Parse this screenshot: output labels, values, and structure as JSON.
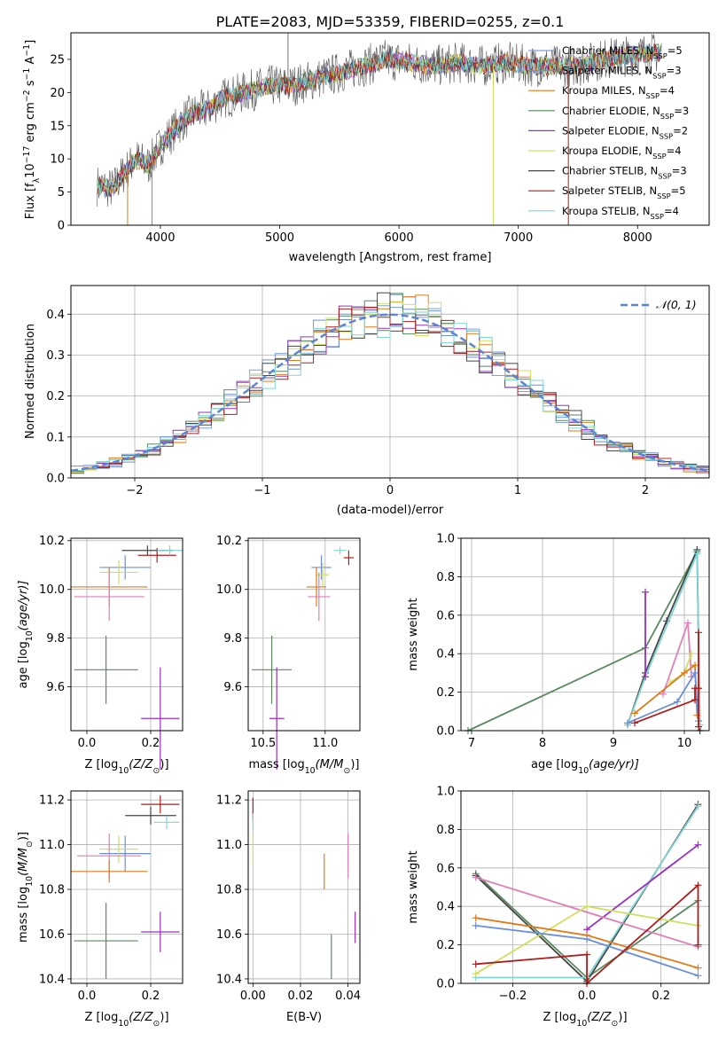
{
  "figure_title": "PLATE=2083, MJD=53359, FIBERID=0255, z=0.1",
  "palette": {
    "Chabrier MILES": "#7f9fd6",
    "Salpeter MILES": "#6a8fdb",
    "Kroupa MILES": "#e07b1a",
    "Chabrier ELODIE": "#5a8a5e",
    "Salpeter ELODIE": "#9b30c0",
    "Kroupa ELODIE": "#cfe060",
    "Chabrier STELIB": "#454545",
    "Salpeter STELIB": "#b01c1c",
    "Kroupa STELIB": "#7fd6d6",
    "extra_pink": "#e07fb8"
  },
  "chart_data": [
    {
      "type": "line",
      "title": "PLATE=2083, MJD=53359, FIBERID=0255, z=0.1",
      "xlabel": "wavelength [Angstrom, rest frame]",
      "ylabel_main": "Flux [f",
      "ylabel_lambda": "λ",
      "ylabel_rest": "10",
      "ylabel_exp1": "−17",
      "ylabel_unit": " erg cm",
      "ylabel_exp2": "−2",
      "ylabel_unit2": " s",
      "ylabel_exp3": "−1",
      "ylabel_unit3": " A",
      "ylabel_exp4": "−1",
      "ylabel_end": "]",
      "xlim": [
        3250,
        8600
      ],
      "ylim": [
        0,
        29
      ],
      "xticks": [
        4000,
        5000,
        6000,
        7000,
        8000
      ],
      "yticks": [
        0,
        5,
        10,
        15,
        20,
        25
      ],
      "continuum_x": [
        3470,
        3600,
        3700,
        3800,
        3900,
        4000,
        4100,
        4200,
        4300,
        4400,
        4500,
        4700,
        4900,
        5100,
        5300,
        5500,
        5700,
        5900,
        6100,
        6300,
        6500,
        6700,
        6900,
        7100,
        7300,
        7500,
        7700,
        7900,
        8100,
        8200
      ],
      "continuum_y": [
        6,
        5.5,
        8,
        10,
        9,
        12,
        14,
        16,
        17,
        17.5,
        19,
        20,
        21,
        21,
        22,
        23,
        24,
        25,
        24.5,
        24,
        24.5,
        24,
        24.5,
        24,
        24,
        24,
        25,
        25.5,
        26,
        26
      ],
      "legend": [
        {
          "label": "Chabrier MILES, N",
          "sub": "SSP",
          "eq": "=5"
        },
        {
          "label": "Salpeter MILES, N",
          "sub": "SSP",
          "eq": "=3"
        },
        {
          "label": "Kroupa MILES, N",
          "sub": "SSP",
          "eq": "=4"
        },
        {
          "label": "Chabrier ELODIE, N",
          "sub": "SSP",
          "eq": "=3"
        },
        {
          "label": "Salpeter ELODIE, N",
          "sub": "SSP",
          "eq": "=2"
        },
        {
          "label": "Kroupa ELODIE, N",
          "sub": "SSP",
          "eq": "=4"
        },
        {
          "label": "Chabrier STELIB, N",
          "sub": "SSP",
          "eq": "=3"
        },
        {
          "label": "Salpeter STELIB, N",
          "sub": "SSP",
          "eq": "=5"
        },
        {
          "label": "Kroupa STELIB, N",
          "sub": "SSP",
          "eq": "=4"
        }
      ]
    },
    {
      "type": "histogram",
      "xlabel": "(data-model)/error",
      "ylabel": "Normed distribution",
      "xlim": [
        -2.5,
        2.5
      ],
      "ylim": [
        0,
        0.47
      ],
      "xticks": [
        -2,
        -1,
        0,
        1,
        2
      ],
      "xtick_labels": [
        "−2",
        "−1",
        "0",
        "1",
        "2"
      ],
      "yticks": [
        0.0,
        0.1,
        0.2,
        0.3,
        0.4
      ],
      "ytick_labels": [
        "0.0",
        "0.1",
        "0.2",
        "0.3",
        "0.4"
      ],
      "bin_width": 0.1,
      "gaussian_label": "𝒩(0, 1)",
      "gaussian_color": "#5b86d6"
    },
    {
      "type": "scatter",
      "xlabel": "Z [log",
      "xlabel_sub": "10",
      "xlabel_rest": "(Z/Z",
      "xlabel_sun_sub": "⊙",
      "xlabel_end": ")]",
      "ylabel": "age  [log",
      "ylabel_sub": "10",
      "ylabel_rest": "(age/yr)]",
      "xlim": [
        -0.05,
        0.3
      ],
      "ylim": [
        9.42,
        10.21
      ],
      "xticks": [
        0.0,
        0.2
      ],
      "xtick_labels": [
        "0.0",
        "0.2"
      ],
      "yticks": [
        9.6,
        9.8,
        10.0,
        10.2
      ],
      "ytick_labels": [
        "9.6",
        "9.8",
        "10.0",
        "10.2"
      ]
    },
    {
      "type": "scatter",
      "xlabel": "mass [log",
      "xlabel_sub": "10",
      "xlabel_rest": "(M/M",
      "xlabel_sun_sub": "⊙",
      "xlabel_end": ")]",
      "xlim": [
        10.38,
        11.28
      ],
      "ylim": [
        9.42,
        10.21
      ],
      "xticks": [
        10.5,
        11.0
      ],
      "xtick_labels": [
        "10.5",
        "11.0"
      ],
      "yticks": [
        9.6,
        9.8,
        10.0,
        10.2
      ],
      "ytick_labels": [
        "9.6",
        "9.8",
        "10.0",
        "10.2"
      ]
    },
    {
      "type": "line",
      "xlabel": "age  [log",
      "xlabel_sub": "10",
      "xlabel_rest": "(age/yr)]",
      "ylabel": "mass weight",
      "xlim": [
        6.85,
        10.35
      ],
      "ylim": [
        0,
        1.0
      ],
      "xticks": [
        7,
        8,
        9,
        10
      ],
      "xtick_labels": [
        "7",
        "8",
        "9",
        "10"
      ],
      "yticks": [
        0.0,
        0.2,
        0.4,
        0.6,
        0.8,
        1.0
      ],
      "ytick_labels": [
        "0.0",
        "0.2",
        "0.4",
        "0.6",
        "0.8",
        "1.0"
      ]
    },
    {
      "type": "scatter",
      "xlabel": "Z [log",
      "xlabel_sub": "10",
      "xlabel_rest": "(Z/Z",
      "xlabel_sun_sub": "⊙",
      "xlabel_end": ")]",
      "ylabel": "mass [log",
      "ylabel_sub": "10",
      "ylabel_rest": "(M/M",
      "ylabel_sun_sub": "⊙",
      "ylabel_end": ")]",
      "xlim": [
        -0.05,
        0.3
      ],
      "ylim": [
        10.38,
        11.24
      ],
      "xticks": [
        0.0,
        0.2
      ],
      "xtick_labels": [
        "0.0",
        "0.2"
      ],
      "yticks": [
        10.4,
        10.6,
        10.8,
        11.0,
        11.2
      ],
      "ytick_labels": [
        "10.4",
        "10.6",
        "10.8",
        "11.0",
        "11.2"
      ]
    },
    {
      "type": "scatter",
      "xlabel": "E(B-V)",
      "xlim": [
        -0.002,
        0.045
      ],
      "ylim": [
        10.38,
        11.24
      ],
      "xticks": [
        0.0,
        0.02,
        0.04
      ],
      "xtick_labels": [
        "0.00",
        "0.02",
        "0.04"
      ],
      "yticks": [
        10.4,
        10.6,
        10.8,
        11.0,
        11.2
      ],
      "ytick_labels": [
        "10.4",
        "10.6",
        "10.8",
        "11.0",
        "11.2"
      ]
    },
    {
      "type": "line",
      "xlabel": "Z [log",
      "xlabel_sub": "10",
      "xlabel_rest": "(Z/Z",
      "xlabel_sun_sub": "⊙",
      "xlabel_end": ")]",
      "ylabel": "mass weight",
      "xlim": [
        -0.34,
        0.33
      ],
      "ylim": [
        0,
        1.0
      ],
      "xticks": [
        -0.2,
        0.0,
        0.2
      ],
      "xtick_labels": [
        "−0.2",
        "0.0",
        "0.2"
      ],
      "yticks": [
        0.0,
        0.2,
        0.4,
        0.6,
        0.8,
        1.0
      ],
      "ytick_labels": [
        "0.0",
        "0.2",
        "0.4",
        "0.6",
        "0.8",
        "1.0"
      ]
    }
  ],
  "scatter_points": {
    "age_Z": [
      {
        "c": "#b01c1c",
        "x": 0.22,
        "y": 10.14,
        "ex": 0.06,
        "ey": 0.03
      },
      {
        "c": "#454545",
        "x": 0.19,
        "y": 10.16,
        "ex": 0.08,
        "ey": 0.02
      },
      {
        "c": "#7fd6d6",
        "x": 0.26,
        "y": 10.16,
        "ex": 0.04,
        "ey": 0.02
      },
      {
        "c": "#6a8fdb",
        "x": 0.12,
        "y": 10.09,
        "ex": 0.08,
        "ey": 0.05
      },
      {
        "c": "#cfe060",
        "x": 0.1,
        "y": 10.07,
        "ex": 0.06,
        "ey": 0.05
      },
      {
        "c": "#e07b1a",
        "x": 0.07,
        "y": 10.01,
        "ex": 0.12,
        "ey": 0.08
      },
      {
        "c": "#e07fb8",
        "x": 0.07,
        "y": 9.97,
        "ex": 0.11,
        "ey": 0.1
      },
      {
        "c": "#5a8a5e",
        "x": 0.06,
        "y": 9.67,
        "ex": 0.1,
        "ey": 0.14
      },
      {
        "c": "#9b30c0",
        "x": 0.23,
        "y": 9.47,
        "ex": 0.06,
        "ey": 0.21
      }
    ],
    "age_mass": [
      {
        "c": "#7fd6d6",
        "x": 11.12,
        "y": 10.16,
        "ex": 0.05,
        "ey": 0.015
      },
      {
        "c": "#b01c1c",
        "x": 11.19,
        "y": 10.13,
        "ex": 0.04,
        "ey": 0.03
      },
      {
        "c": "#6a8fdb",
        "x": 10.97,
        "y": 10.09,
        "ex": 0.08,
        "ey": 0.05
      },
      {
        "c": "#cfe060",
        "x": 10.98,
        "y": 10.06,
        "ex": 0.05,
        "ey": 0.05
      },
      {
        "c": "#e07b1a",
        "x": 10.93,
        "y": 10.01,
        "ex": 0.08,
        "ey": 0.08
      },
      {
        "c": "#e07fb8",
        "x": 10.95,
        "y": 9.97,
        "ex": 0.09,
        "ey": 0.1
      },
      {
        "c": "#5a8a5e",
        "x": 10.57,
        "y": 9.67,
        "ex": 0.16,
        "ey": 0.14
      },
      {
        "c": "#9b30c0",
        "x": 10.61,
        "y": 9.47,
        "ex": 0.06,
        "ey": 0.21
      }
    ],
    "mass_Z": [
      {
        "c": "#b01c1c",
        "x": 0.23,
        "y": 11.18,
        "ex": 0.06,
        "ey": 0.04
      },
      {
        "c": "#454545",
        "x": 0.2,
        "y": 11.13,
        "ex": 0.08,
        "ey": 0.04
      },
      {
        "c": "#7fd6d6",
        "x": 0.25,
        "y": 11.1,
        "ex": 0.04,
        "ey": 0.03
      },
      {
        "c": "#6a8fdb",
        "x": 0.12,
        "y": 10.96,
        "ex": 0.08,
        "ey": 0.08
      },
      {
        "c": "#cfe060",
        "x": 0.1,
        "y": 10.98,
        "ex": 0.06,
        "ey": 0.06
      },
      {
        "c": "#e07fb8",
        "x": 0.07,
        "y": 10.95,
        "ex": 0.1,
        "ey": 0.1
      },
      {
        "c": "#e07b1a",
        "x": 0.07,
        "y": 10.88,
        "ex": 0.12,
        "ey": 0.05
      },
      {
        "c": "#9b30c0",
        "x": 0.23,
        "y": 10.61,
        "ex": 0.06,
        "ey": 0.09
      },
      {
        "c": "#5a8a5e",
        "x": 0.06,
        "y": 10.57,
        "ex": 0.1,
        "ey": 0.17
      }
    ],
    "mass_ebv": [
      {
        "c": "#b01c1c",
        "x": 0.0,
        "y": 11.16,
        "ey": 0.05
      },
      {
        "c": "#7fd6d6",
        "x": 0.0,
        "y": 11.1,
        "ey": 0.04
      },
      {
        "c": "#cfe060",
        "x": 0.0,
        "y": 10.98,
        "ey": 0.07
      },
      {
        "c": "#6a8fdb",
        "x": 0.04,
        "y": 10.96,
        "ey": 0.08
      },
      {
        "c": "#e07fb8",
        "x": 0.04,
        "y": 10.95,
        "ey": 0.1
      },
      {
        "c": "#e07b1a",
        "x": 0.03,
        "y": 10.88,
        "ey": 0.08
      },
      {
        "c": "#9b30c0",
        "x": 0.043,
        "y": 10.63,
        "ey": 0.07
      },
      {
        "c": "#5a8a5e",
        "x": 0.033,
        "y": 10.5,
        "ey": 0.1
      }
    ]
  },
  "weight_age_series": [
    {
      "c": "#5a8a5e",
      "pts": [
        [
          6.95,
          0.0
        ],
        [
          9.45,
          0.43
        ],
        [
          10.18,
          0.93
        ]
      ]
    },
    {
      "c": "#454545",
      "pts": [
        [
          9.2,
          0.03
        ],
        [
          9.45,
          0.3
        ],
        [
          9.75,
          0.57
        ],
        [
          10.18,
          0.94
        ],
        [
          10.22,
          0.0
        ]
      ]
    },
    {
      "c": "#7fd6d6",
      "pts": [
        [
          9.2,
          0.03
        ],
        [
          9.45,
          0.28
        ],
        [
          10.18,
          0.92
        ],
        [
          10.22,
          0.03
        ]
      ]
    },
    {
      "c": "#9b30c0",
      "pts": [
        [
          9.45,
          0.72
        ],
        [
          9.45,
          0.28
        ]
      ]
    },
    {
      "c": "#e07fb8",
      "pts": [
        [
          9.7,
          0.19
        ],
        [
          10.05,
          0.56
        ],
        [
          10.1,
          0.28
        ]
      ]
    },
    {
      "c": "#cfe060",
      "pts": [
        [
          9.8,
          0.25
        ],
        [
          10.0,
          0.3
        ],
        [
          10.1,
          0.4
        ]
      ]
    },
    {
      "c": "#e07b1a",
      "pts": [
        [
          9.3,
          0.09
        ],
        [
          10.0,
          0.3
        ],
        [
          10.15,
          0.34
        ],
        [
          10.18,
          0.08
        ]
      ]
    },
    {
      "c": "#6a8fdb",
      "pts": [
        [
          9.2,
          0.04
        ],
        [
          9.9,
          0.15
        ],
        [
          10.15,
          0.3
        ],
        [
          10.2,
          0.05
        ]
      ]
    },
    {
      "c": "#b01c1c",
      "pts": [
        [
          9.3,
          0.04
        ],
        [
          10.15,
          0.16
        ],
        [
          10.15,
          0.22
        ],
        [
          10.2,
          0.22
        ],
        [
          10.2,
          0.51
        ],
        [
          10.2,
          0.02
        ]
      ]
    }
  ],
  "weight_Z_series": [
    {
      "c": "#5a8a5e",
      "pts": [
        [
          -0.3,
          0.57
        ],
        [
          0.0,
          0.03
        ],
        [
          0.3,
          0.43
        ]
      ]
    },
    {
      "c": "#454545",
      "pts": [
        [
          -0.3,
          0.56
        ],
        [
          0.0,
          0.01
        ],
        [
          0.3,
          0.93
        ]
      ]
    },
    {
      "c": "#7fd6d6",
      "pts": [
        [
          -0.3,
          0.03
        ],
        [
          0.0,
          0.03
        ],
        [
          0.3,
          0.92
        ]
      ]
    },
    {
      "c": "#9b30c0",
      "pts": [
        [
          0.0,
          0.28
        ],
        [
          0.3,
          0.72
        ]
      ]
    },
    {
      "c": "#e07fb8",
      "pts": [
        [
          -0.3,
          0.55
        ],
        [
          0.3,
          0.19
        ]
      ]
    },
    {
      "c": "#cfe060",
      "pts": [
        [
          -0.3,
          0.05
        ],
        [
          0.0,
          0.4
        ],
        [
          0.3,
          0.3
        ]
      ]
    },
    {
      "c": "#e07b1a",
      "pts": [
        [
          -0.3,
          0.34
        ],
        [
          0.0,
          0.25
        ],
        [
          0.3,
          0.08
        ]
      ]
    },
    {
      "c": "#6a8fdb",
      "pts": [
        [
          -0.3,
          0.3
        ],
        [
          0.0,
          0.23
        ],
        [
          0.3,
          0.04
        ]
      ]
    },
    {
      "c": "#b01c1c",
      "pts": [
        [
          -0.3,
          0.1
        ],
        [
          0.0,
          0.15
        ],
        [
          0.0,
          0.0
        ],
        [
          0.3,
          0.51
        ],
        [
          0.3,
          0.2
        ]
      ]
    }
  ]
}
